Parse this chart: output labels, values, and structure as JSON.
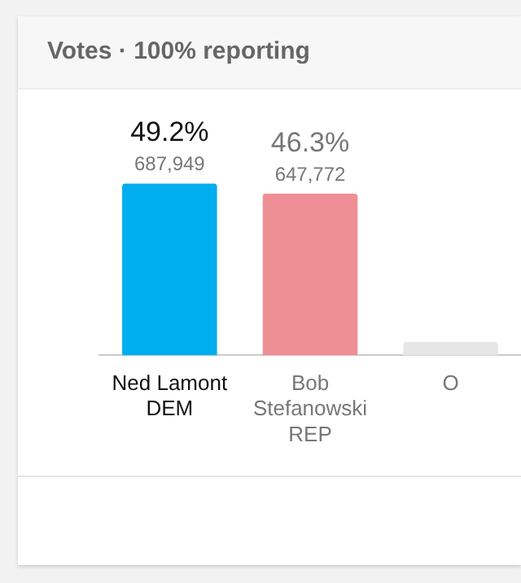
{
  "chart_data": {
    "type": "bar",
    "title": "Votes · 100% reporting",
    "categories": [
      "Ned Lamont\nDEM",
      "Bob\nStefanowski\nREP",
      "O"
    ],
    "values": [
      49.2,
      46.3,
      3.8
    ],
    "colors": [
      "#00aeef",
      "#ee8f95",
      "#e6e6e6"
    ],
    "value_labels": [
      "49.2%",
      "46.3%",
      null
    ],
    "annotations": [
      {
        "text": "687,949",
        "x": "Ned Lamont\nDEM",
        "y": 49.2
      },
      {
        "text": "647,772",
        "x": "Bob\nStefanowski\nREP",
        "y": 46.3
      }
    ]
  }
}
